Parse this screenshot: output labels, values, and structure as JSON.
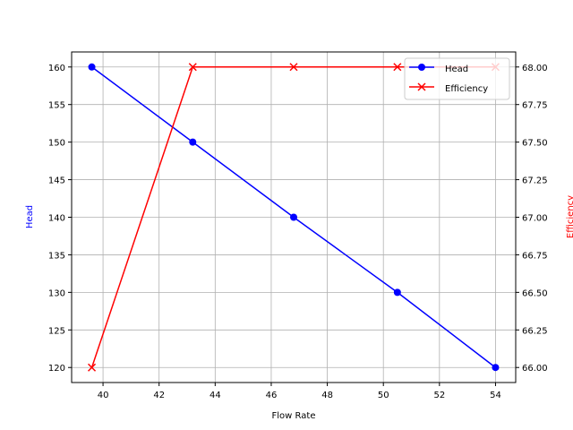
{
  "chart_data": {
    "type": "line",
    "title": "",
    "xlabel": "Flow Rate",
    "ylabel_left": "Head",
    "ylabel_right": "Efficiency",
    "xlim": [
      38.88,
      54.72
    ],
    "ylim_left": [
      118,
      162
    ],
    "ylim_right": [
      65.9,
      68.1
    ],
    "x_ticks": [
      40,
      42,
      44,
      46,
      48,
      50,
      52,
      54
    ],
    "y_ticks_left": [
      120,
      125,
      130,
      135,
      140,
      145,
      150,
      155,
      160
    ],
    "y_ticks_right": [
      "66.00",
      "66.25",
      "66.50",
      "66.75",
      "67.00",
      "67.25",
      "67.50",
      "67.75",
      "68.00"
    ],
    "grid": true,
    "legend_position": "upper right",
    "x": [
      39.6,
      43.2,
      46.8,
      50.5,
      54.0
    ],
    "series": [
      {
        "name": "Head",
        "axis": "left",
        "color": "#0000ff",
        "marker": "o",
        "values": [
          160,
          150,
          140,
          130,
          120
        ]
      },
      {
        "name": "Efficiency",
        "axis": "right",
        "color": "#ff0000",
        "marker": "x",
        "values": [
          66.0,
          68.0,
          68.0,
          68.0,
          68.0
        ]
      }
    ]
  },
  "legend": {
    "items": [
      {
        "label": "Head",
        "color": "#0000ff"
      },
      {
        "label": "Efficiency",
        "color": "#ff0000"
      }
    ]
  }
}
